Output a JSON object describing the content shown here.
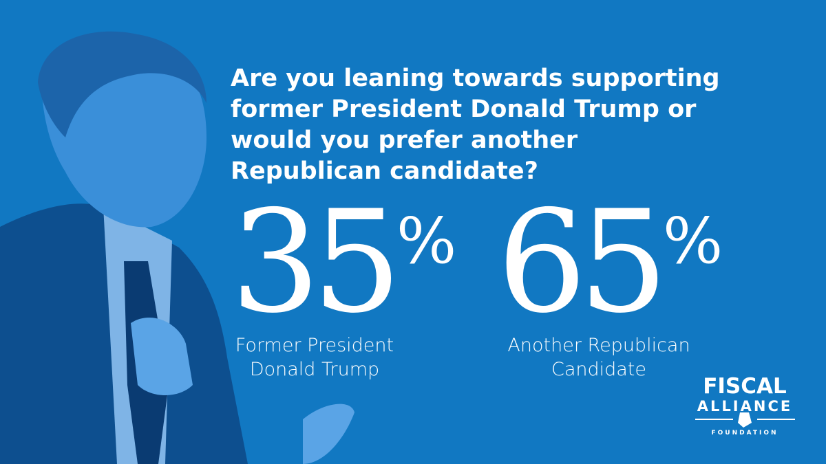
{
  "question": {
    "lines": [
      "Are you leaning towards supporting",
      "former President Donald Trump or",
      "would you prefer another",
      "Republican candidate?"
    ]
  },
  "stats": [
    {
      "number": 35,
      "symbol": "%",
      "label": [
        "Former President",
        "Donald Trump"
      ]
    },
    {
      "number": 65,
      "symbol": "%",
      "label": [
        "Another Republican",
        "Candidate"
      ]
    }
  ],
  "logo": {
    "line1": "FISCAL",
    "line2": "ALLIANCE",
    "line3": "FOUNDATION"
  }
}
